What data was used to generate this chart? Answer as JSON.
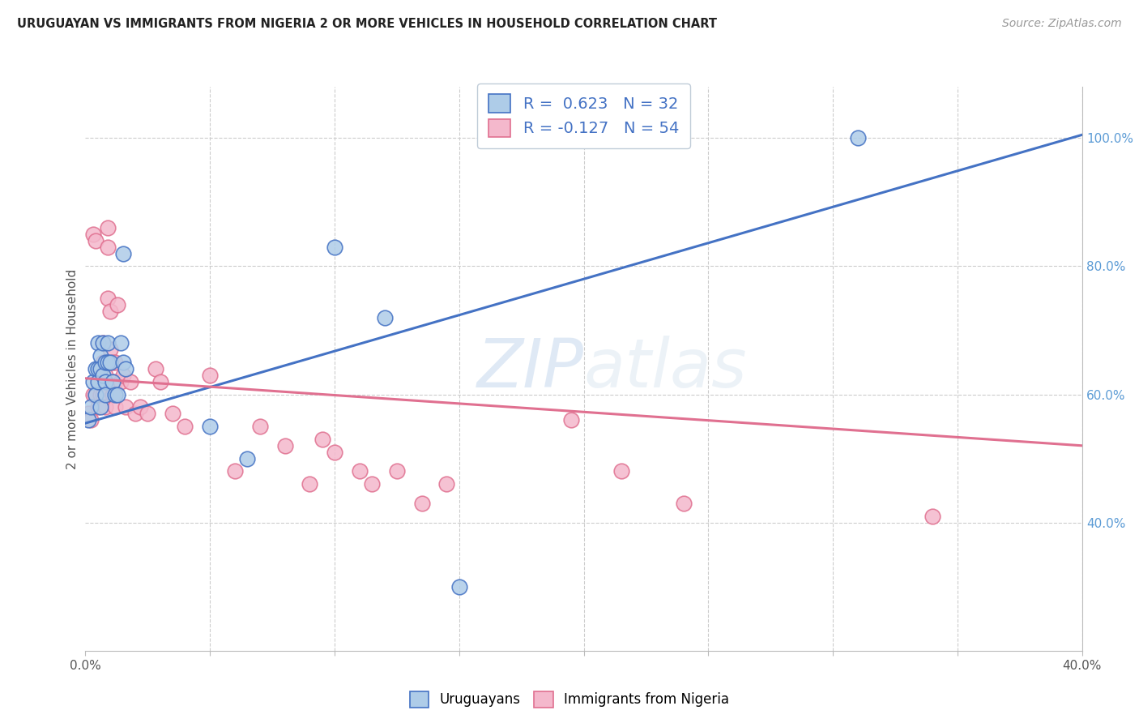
{
  "title": "URUGUAYAN VS IMMIGRANTS FROM NIGERIA 2 OR MORE VEHICLES IN HOUSEHOLD CORRELATION CHART",
  "source": "Source: ZipAtlas.com",
  "ylabel": "2 or more Vehicles in Household",
  "x_min": 0.0,
  "x_max": 0.4,
  "y_min": 0.2,
  "y_max": 1.08,
  "uruguayan_R": 0.623,
  "uruguayan_N": 32,
  "nigeria_R": -0.127,
  "nigeria_N": 54,
  "blue_color": "#aecce8",
  "pink_color": "#f4b8cc",
  "blue_line_color": "#4472c4",
  "pink_line_color": "#e07090",
  "blue_line_y0": 0.555,
  "blue_line_y1": 1.005,
  "pink_line_y0": 0.625,
  "pink_line_y1": 0.52,
  "uruguayan_x": [
    0.001,
    0.002,
    0.003,
    0.004,
    0.004,
    0.005,
    0.005,
    0.005,
    0.006,
    0.006,
    0.006,
    0.007,
    0.007,
    0.008,
    0.008,
    0.008,
    0.009,
    0.009,
    0.01,
    0.011,
    0.012,
    0.013,
    0.014,
    0.015,
    0.015,
    0.016,
    0.05,
    0.065,
    0.1,
    0.12,
    0.15,
    0.31
  ],
  "uruguayan_y": [
    0.56,
    0.58,
    0.62,
    0.6,
    0.64,
    0.62,
    0.64,
    0.68,
    0.66,
    0.64,
    0.58,
    0.68,
    0.63,
    0.65,
    0.62,
    0.6,
    0.68,
    0.65,
    0.65,
    0.62,
    0.6,
    0.6,
    0.68,
    0.82,
    0.65,
    0.64,
    0.55,
    0.5,
    0.83,
    0.72,
    0.3,
    1.0
  ],
  "nigeria_x": [
    0.001,
    0.002,
    0.003,
    0.003,
    0.004,
    0.004,
    0.005,
    0.005,
    0.006,
    0.006,
    0.007,
    0.007,
    0.007,
    0.008,
    0.008,
    0.008,
    0.009,
    0.009,
    0.009,
    0.01,
    0.01,
    0.011,
    0.011,
    0.012,
    0.012,
    0.012,
    0.013,
    0.014,
    0.015,
    0.016,
    0.018,
    0.02,
    0.022,
    0.025,
    0.028,
    0.03,
    0.035,
    0.04,
    0.05,
    0.06,
    0.07,
    0.08,
    0.09,
    0.095,
    0.1,
    0.11,
    0.115,
    0.125,
    0.135,
    0.145,
    0.195,
    0.215,
    0.24,
    0.34
  ],
  "nigeria_y": [
    0.57,
    0.56,
    0.6,
    0.85,
    0.6,
    0.84,
    0.62,
    0.58,
    0.64,
    0.6,
    0.68,
    0.65,
    0.6,
    0.65,
    0.63,
    0.58,
    0.86,
    0.83,
    0.75,
    0.73,
    0.67,
    0.65,
    0.6,
    0.65,
    0.62,
    0.58,
    0.74,
    0.62,
    0.63,
    0.58,
    0.62,
    0.57,
    0.58,
    0.57,
    0.64,
    0.62,
    0.57,
    0.55,
    0.63,
    0.48,
    0.55,
    0.52,
    0.46,
    0.53,
    0.51,
    0.48,
    0.46,
    0.48,
    0.43,
    0.46,
    0.56,
    0.48,
    0.43,
    0.41
  ]
}
